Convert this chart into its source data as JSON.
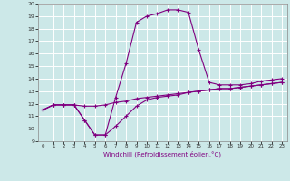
{
  "xlabel": "Windchill (Refroidissement éolien,°C)",
  "bg_color": "#cce8e8",
  "grid_color": "#ffffff",
  "line_color": "#800080",
  "xlim": [
    -0.5,
    23.5
  ],
  "ylim": [
    9,
    20
  ],
  "xticks": [
    0,
    1,
    2,
    3,
    4,
    5,
    6,
    7,
    8,
    9,
    10,
    11,
    12,
    13,
    14,
    15,
    16,
    17,
    18,
    19,
    20,
    21,
    22,
    23
  ],
  "yticks": [
    9,
    10,
    11,
    12,
    13,
    14,
    15,
    16,
    17,
    18,
    19,
    20
  ],
  "series1_x": [
    0,
    1,
    2,
    3,
    4,
    5,
    6,
    7,
    8,
    9,
    10,
    11,
    12,
    13,
    14,
    15,
    16,
    17,
    18,
    19,
    20,
    21,
    22,
    23
  ],
  "series1_y": [
    11.5,
    11.9,
    11.9,
    11.9,
    11.8,
    11.8,
    11.9,
    12.1,
    12.2,
    12.4,
    12.5,
    12.6,
    12.7,
    12.8,
    12.9,
    13.0,
    13.1,
    13.2,
    13.2,
    13.3,
    13.4,
    13.5,
    13.6,
    13.7
  ],
  "series2_x": [
    0,
    1,
    2,
    3,
    4,
    5,
    6,
    7,
    8,
    9,
    10,
    11,
    12,
    13,
    14,
    15,
    16,
    17,
    18,
    19,
    20,
    21,
    22,
    23
  ],
  "series2_y": [
    11.5,
    11.9,
    11.9,
    11.9,
    10.7,
    9.5,
    9.5,
    10.2,
    11.0,
    11.8,
    12.3,
    12.5,
    12.6,
    12.7,
    12.9,
    13.0,
    13.1,
    13.2,
    13.2,
    13.3,
    13.4,
    13.5,
    13.6,
    13.7
  ],
  "series3_x": [
    0,
    1,
    2,
    3,
    4,
    5,
    6,
    7,
    8,
    9,
    10,
    11,
    12,
    13,
    14,
    15,
    16,
    17,
    18,
    19,
    20,
    21,
    22,
    23
  ],
  "series3_y": [
    11.5,
    11.9,
    11.9,
    11.9,
    10.7,
    9.5,
    9.5,
    12.5,
    15.2,
    18.5,
    19.0,
    19.2,
    19.5,
    19.5,
    19.3,
    16.3,
    13.7,
    13.5,
    13.5,
    13.5,
    13.6,
    13.8,
    13.9,
    14.0
  ]
}
